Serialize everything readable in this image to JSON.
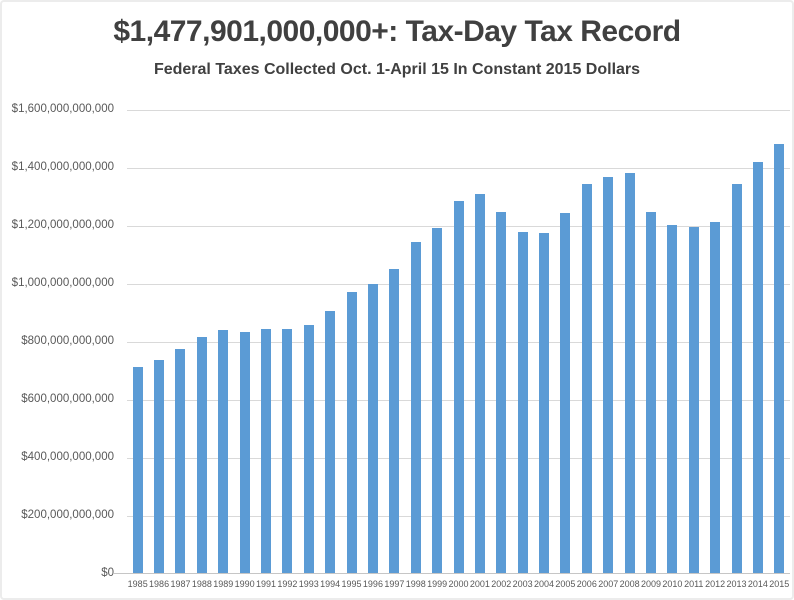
{
  "title": {
    "text": "$1,477,901,000,000+: Tax-Day Tax Record",
    "subtitle": "Federal Taxes Collected Oct. 1-April 15 In Constant 2015 Dollars"
  },
  "colors": {
    "bar": "#5b9bd5",
    "title_text": "#404040",
    "axis_text": "#595959",
    "gridline": "#d9d9d9",
    "axis_line": "#c6c6c6",
    "background": "#ffffff"
  },
  "chart_data": {
    "type": "bar",
    "title": "$1,477,901,000,000+: Tax-Day Tax Record",
    "subtitle": "Federal Taxes Collected Oct. 1-April 15 In Constant 2015 Dollars",
    "xlabel": "",
    "ylabel": "",
    "legend": "none",
    "grid": true,
    "ylim": [
      0,
      1600000000000
    ],
    "ytick_interval": 200000000000,
    "yticks": [
      "$0",
      "$200,000,000,000",
      "$400,000,000,000",
      "$600,000,000,000",
      "$800,000,000,000",
      "$1,000,000,000,000",
      "$1,200,000,000,000",
      "$1,400,000,000,000",
      "$1,600,000,000,000"
    ],
    "categories": [
      "1985",
      "1986",
      "1987",
      "1988",
      "1989",
      "1990",
      "1991",
      "1992",
      "1993",
      "1994",
      "1995",
      "1996",
      "1997",
      "1998",
      "1999",
      "2000",
      "2001",
      "2002",
      "2003",
      "2004",
      "2005",
      "2006",
      "2007",
      "2008",
      "2009",
      "2010",
      "2011",
      "2012",
      "2013",
      "2014",
      "2015"
    ],
    "values": [
      710000000000,
      734000000000,
      772000000000,
      815000000000,
      838000000000,
      831000000000,
      842000000000,
      843000000000,
      856000000000,
      902000000000,
      969000000000,
      995000000000,
      1048000000000,
      1142000000000,
      1190000000000,
      1282000000000,
      1306000000000,
      1245000000000,
      1177000000000,
      1174000000000,
      1240000000000,
      1342000000000,
      1364000000000,
      1378000000000,
      1246000000000,
      1200000000000,
      1192000000000,
      1212000000000,
      1340000000000,
      1417000000000,
      1477901000000
    ]
  }
}
